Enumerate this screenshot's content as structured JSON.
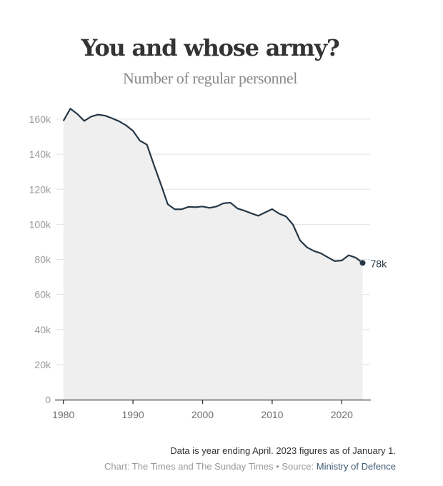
{
  "chart_data": {
    "type": "area",
    "title": "You and whose army?",
    "subtitle": "Number of regular personnel",
    "xlabel": "",
    "ylabel": "",
    "x": [
      1980,
      1981,
      1982,
      1983,
      1984,
      1985,
      1986,
      1987,
      1988,
      1989,
      1990,
      1991,
      1992,
      1993,
      1994,
      1995,
      1996,
      1997,
      1998,
      1999,
      2000,
      2001,
      2002,
      2003,
      2004,
      2005,
      2006,
      2007,
      2008,
      2009,
      2010,
      2011,
      2012,
      2013,
      2014,
      2015,
      2016,
      2017,
      2018,
      2019,
      2020,
      2021,
      2022,
      2023
    ],
    "series": [
      {
        "name": "Regular personnel",
        "color": "#263746",
        "fill": "#efefef",
        "values": [
          159000,
          166000,
          163000,
          159000,
          161500,
          162600,
          162000,
          160500,
          158800,
          156500,
          153400,
          147700,
          145500,
          134000,
          123000,
          111500,
          108600,
          108600,
          110000,
          109800,
          110200,
          109400,
          110200,
          112000,
          112400,
          109100,
          107800,
          106300,
          104900,
          106800,
          108700,
          106100,
          104500,
          99800,
          90900,
          86900,
          84800,
          83500,
          81200,
          79000,
          79400,
          82400,
          81000,
          78000
        ]
      }
    ],
    "ylim": [
      0,
      160000
    ],
    "xlim": [
      1980,
      2024
    ],
    "y_ticks": [
      {
        "value": 0,
        "label": "0"
      },
      {
        "value": 20000,
        "label": "20k"
      },
      {
        "value": 40000,
        "label": "40k"
      },
      {
        "value": 60000,
        "label": "60k"
      },
      {
        "value": 80000,
        "label": "80k"
      },
      {
        "value": 100000,
        "label": "100k"
      },
      {
        "value": 120000,
        "label": "120k"
      },
      {
        "value": 140000,
        "label": "140k"
      },
      {
        "value": 160000,
        "label": "160k"
      }
    ],
    "x_ticks": [
      {
        "value": 1980,
        "label": "1980"
      },
      {
        "value": 1990,
        "label": "1990"
      },
      {
        "value": 2000,
        "label": "2000"
      },
      {
        "value": 2010,
        "label": "2010"
      },
      {
        "value": 2020,
        "label": "2020"
      }
    ],
    "grid": "horizontal",
    "annotations": [
      {
        "x": 2023,
        "y": 78000,
        "label": "78k",
        "marker": "dot"
      }
    ],
    "legend": "none"
  },
  "footer": {
    "note": "Data is year ending April. 2023 figures as of January 1.",
    "credit_prefix": "Chart: The Times and The Sunday Times • Source: ",
    "source_link": "Ministry of Defence"
  }
}
